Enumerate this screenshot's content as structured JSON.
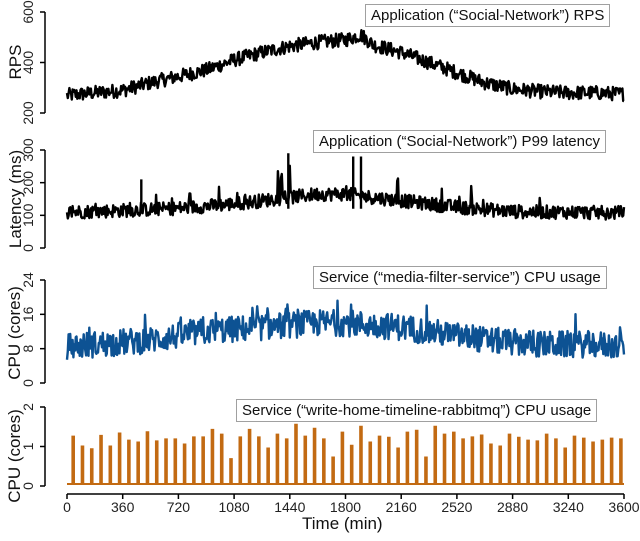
{
  "chart_data": [
    {
      "type": "line",
      "title": "Application (“Social-Network”) RPS",
      "xlabel": "Time (min)",
      "ylabel": "RPS",
      "xlim": [
        0,
        3600
      ],
      "ylim": [
        200,
        600
      ],
      "yticks": [
        200,
        400,
        600
      ],
      "color": "#000000",
      "x": [
        0,
        180,
        360,
        540,
        720,
        900,
        1080,
        1260,
        1440,
        1620,
        1800,
        1900,
        1980,
        2160,
        2340,
        2520,
        2700,
        2880,
        3060,
        3240,
        3420,
        3600
      ],
      "values": [
        270,
        280,
        290,
        320,
        345,
        370,
        410,
        440,
        465,
        480,
        490,
        510,
        470,
        440,
        400,
        360,
        320,
        295,
        285,
        280,
        280,
        275
      ]
    },
    {
      "type": "line",
      "title": "Application (“Social-Network”) P99 latency",
      "xlabel": "Time (min)",
      "ylabel": "Latency (ms)",
      "xlim": [
        0,
        3600
      ],
      "ylim": [
        0,
        300
      ],
      "yticks": [
        0,
        100,
        200,
        300
      ],
      "color": "#000000",
      "x": [
        0,
        180,
        360,
        540,
        720,
        900,
        1080,
        1260,
        1440,
        1620,
        1800,
        1980,
        2160,
        2340,
        2520,
        2700,
        2880,
        3060,
        3240,
        3420,
        3600
      ],
      "values": [
        110,
        112,
        115,
        118,
        122,
        128,
        135,
        145,
        155,
        165,
        165,
        155,
        145,
        135,
        125,
        118,
        112,
        110,
        110,
        108,
        108
      ],
      "peak_spikes": [
        {
          "x": 1430,
          "y": 290
        },
        {
          "x": 1850,
          "y": 280
        },
        {
          "x": 1900,
          "y": 280
        },
        {
          "x": 480,
          "y": 210
        }
      ]
    },
    {
      "type": "line",
      "title": "Service (“media-filter-service”) CPU usage",
      "xlabel": "Time (min)",
      "ylabel": "CPU (cores)",
      "xlim": [
        0,
        3600
      ],
      "ylim": [
        0,
        24
      ],
      "yticks": [
        0,
        8,
        16,
        24
      ],
      "color": "#0d5293",
      "x": [
        0,
        180,
        360,
        540,
        720,
        900,
        1080,
        1260,
        1440,
        1620,
        1800,
        1980,
        2160,
        2340,
        2520,
        2700,
        2880,
        3060,
        3240,
        3420,
        3600
      ],
      "values": [
        8.5,
        9,
        9.5,
        10,
        11,
        12,
        12.5,
        13,
        13.5,
        14,
        14,
        13.5,
        13,
        12,
        11,
        10,
        9.5,
        9,
        9,
        9,
        8.5
      ]
    },
    {
      "type": "line",
      "title": "Service (“write-home-timeline-rabbitmq”) CPU usage",
      "xlabel": "Time (min)",
      "ylabel": "CPU (cores)",
      "xlim": [
        0,
        3600
      ],
      "ylim": [
        0,
        2
      ],
      "yticks": [
        0,
        1,
        2
      ],
      "xticks": [
        0,
        360,
        720,
        1080,
        1440,
        1800,
        2160,
        2520,
        2880,
        3240,
        3600
      ],
      "color": "#c26a12",
      "baseline": 0.05,
      "spike_interval_min": 60,
      "spike_x": [
        40,
        100,
        160,
        220,
        280,
        340,
        400,
        460,
        520,
        580,
        640,
        700,
        760,
        820,
        880,
        940,
        1000,
        1060,
        1120,
        1180,
        1240,
        1300,
        1360,
        1420,
        1480,
        1540,
        1600,
        1660,
        1720,
        1780,
        1840,
        1900,
        1960,
        2020,
        2080,
        2140,
        2200,
        2260,
        2320,
        2380,
        2440,
        2500,
        2560,
        2620,
        2680,
        2740,
        2800,
        2860,
        2920,
        2980,
        3040,
        3100,
        3160,
        3220,
        3280,
        3340,
        3400,
        3460,
        3520,
        3580
      ],
      "spike_values": [
        1.25,
        1.0,
        0.93,
        1.27,
        1.0,
        1.33,
        1.15,
        1.1,
        1.36,
        1.13,
        1.18,
        1.18,
        1.05,
        1.23,
        1.23,
        1.42,
        1.3,
        0.68,
        1.23,
        1.42,
        1.23,
        0.95,
        1.3,
        1.18,
        1.55,
        1.25,
        1.45,
        1.18,
        0.72,
        1.35,
        1.02,
        1.5,
        1.1,
        1.25,
        1.22,
        0.95,
        1.35,
        1.4,
        0.72,
        1.5,
        1.3,
        1.35,
        1.18,
        1.23,
        1.28,
        1.05,
        1.0,
        1.3,
        1.22,
        1.15,
        1.13,
        1.3,
        1.18,
        0.95,
        1.25,
        1.2,
        1.1,
        1.15,
        1.2,
        1.18
      ]
    }
  ],
  "panels": [
    {
      "legend": "Application (“Social-Network”) RPS",
      "ylabel": "RPS",
      "yticks": [
        "200",
        "400",
        "600"
      ]
    },
    {
      "legend": "Application (“Social-Network”) P99 latency",
      "ylabel": "Latency (ms)",
      "yticks": [
        "0",
        "100",
        "200",
        "300"
      ]
    },
    {
      "legend": "Service (“media-filter-service”) CPU usage",
      "ylabel": "CPU (cores)",
      "yticks": [
        "0",
        "8",
        "16",
        "24"
      ]
    },
    {
      "legend": "Service (“write-home-timeline-rabbitmq”) CPU usage",
      "ylabel": "CPU (cores)",
      "yticks": [
        "0",
        "1",
        "2"
      ]
    }
  ],
  "xaxis": {
    "label": "Time (min)",
    "ticks": [
      "0",
      "360",
      "720",
      "1080",
      "1440",
      "1800",
      "2160",
      "2520",
      "2880",
      "3240",
      "3600"
    ]
  },
  "colors": {
    "rps": "#000000",
    "latency": "#000000",
    "media_filter": "#0d5293",
    "rabbitmq": "#c26a12"
  }
}
